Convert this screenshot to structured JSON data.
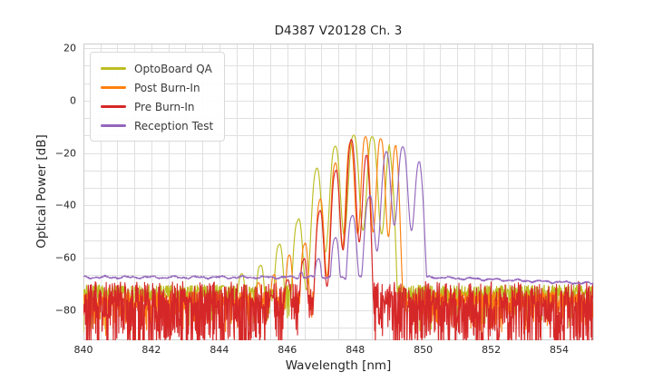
{
  "chart_data": {
    "type": "line",
    "title": "D4387 V20128 Ch. 3",
    "xlabel": "Wavelength [nm]",
    "ylabel": "Optical Power [dB]",
    "xlim": [
      840,
      855
    ],
    "ylim": [
      -91.4,
      21.7
    ],
    "xtick_values": [
      840,
      842,
      844,
      846,
      848,
      850,
      852,
      854
    ],
    "xtick_labels": [
      "840",
      "842",
      "844",
      "846",
      "848",
      "850",
      "852",
      "854"
    ],
    "ytick_values": [
      20,
      0,
      -20,
      -40,
      -60,
      -80
    ],
    "ytick_labels": [
      "20",
      "0",
      "−20",
      "−40",
      "−60",
      "−80"
    ],
    "grid": {
      "on": true,
      "x_step_nm": 0.5,
      "y_step_db": 6.667,
      "color": "#e0e0e0",
      "border_color": "#cccccc"
    },
    "legend_position": "upper left",
    "series": [
      {
        "name": "OptoBoard QA",
        "color": "#bcbd22",
        "seed": 7,
        "mode_spacing_nm": 0.55,
        "first_mode_nm": 845.2,
        "valley_depth_db": 36,
        "peak_shape": 1.4,
        "envelope_points_nm_db": [
          [
            843.6,
            -76
          ],
          [
            844.4,
            -67.5
          ],
          [
            845.2,
            -63
          ],
          [
            845.75,
            -55
          ],
          [
            846.3,
            -46
          ],
          [
            846.85,
            -26
          ],
          [
            847.4,
            -17.5
          ],
          [
            847.95,
            -13.2
          ],
          [
            848.5,
            -13.8
          ],
          [
            849.0,
            -15.8
          ],
          [
            849.22,
            -45
          ],
          [
            849.35,
            -74
          ]
        ],
        "peak_power_db": -13.2,
        "peak_wavelength_nm": 847.95,
        "right_cutoff_nm": 849.3,
        "noise": {
          "base_db": -73.5,
          "jitter_db": 3.2,
          "spike_prob": 0.15,
          "spike_depth_db": 12
        }
      },
      {
        "name": "Post Burn-In",
        "color": "#ff7f0e",
        "seed": 11,
        "mode_spacing_nm": 0.45,
        "first_mode_nm": 845.6,
        "valley_depth_db": 36,
        "peak_shape": 1.4,
        "envelope_points_nm_db": [
          [
            844.2,
            -78
          ],
          [
            845.0,
            -70.5
          ],
          [
            845.6,
            -66.5
          ],
          [
            846.05,
            -59
          ],
          [
            846.5,
            -55
          ],
          [
            846.95,
            -38
          ],
          [
            847.4,
            -24
          ],
          [
            847.85,
            -16
          ],
          [
            848.3,
            -13.8
          ],
          [
            848.75,
            -14.6
          ],
          [
            849.2,
            -17.2
          ],
          [
            849.45,
            -45
          ],
          [
            849.6,
            -77
          ]
        ],
        "peak_power_db": -13.8,
        "peak_wavelength_nm": 848.3,
        "right_cutoff_nm": 849.55,
        "noise": {
          "base_db": -76,
          "jitter_db": 3.0,
          "spike_prob": 0.22,
          "spike_depth_db": 11
        }
      },
      {
        "name": "Pre Burn-In",
        "color": "#d62728",
        "seed": 3,
        "mode_spacing_nm": 0.47,
        "first_mode_nm": 846.0,
        "valley_depth_db": 36,
        "peak_shape": 1.4,
        "envelope_points_nm_db": [
          [
            845.4,
            -76
          ],
          [
            846.0,
            -68.5
          ],
          [
            846.47,
            -61
          ],
          [
            846.94,
            -42.5
          ],
          [
            847.41,
            -27
          ],
          [
            847.88,
            -14.8
          ],
          [
            848.35,
            -21
          ],
          [
            848.55,
            -48
          ],
          [
            848.68,
            -76
          ]
        ],
        "peak_power_db": -14.8,
        "peak_wavelength_nm": 847.88,
        "right_cutoff_nm": 848.6,
        "noise": {
          "base_db": -74,
          "jitter_db": 5.0,
          "spike_prob": 0.6,
          "spike_depth_db": 22
        }
      },
      {
        "name": "Reception Test",
        "color": "#9467bd",
        "seed": 21,
        "mode_spacing_nm": 0.5,
        "first_mode_nm": 846.4,
        "valley_depth_db": 29,
        "peak_shape": 1.4,
        "envelope_points_nm_db": [
          [
            846.05,
            -67.5
          ],
          [
            846.4,
            -65.5
          ],
          [
            846.9,
            -60.5
          ],
          [
            847.4,
            -52.5
          ],
          [
            847.9,
            -44
          ],
          [
            848.4,
            -37
          ],
          [
            848.9,
            -19.5
          ],
          [
            849.4,
            -17.6
          ],
          [
            849.9,
            -23.5
          ],
          [
            850.08,
            -40
          ],
          [
            850.3,
            -67.2
          ]
        ],
        "peak_power_db": -17.6,
        "peak_wavelength_nm": 849.4,
        "right_cutoff_nm": 850.3,
        "noise": {
          "base_db": -67.4,
          "jitter_db": 0.3,
          "spike_prob": 0,
          "spike_depth_db": 0
        },
        "baseline": {
          "left_db": -67.4,
          "decline_start_nm": 850.3,
          "slope_db_per_nm": 0.5,
          "wiggle_amp_db": 0.3
        }
      }
    ]
  }
}
